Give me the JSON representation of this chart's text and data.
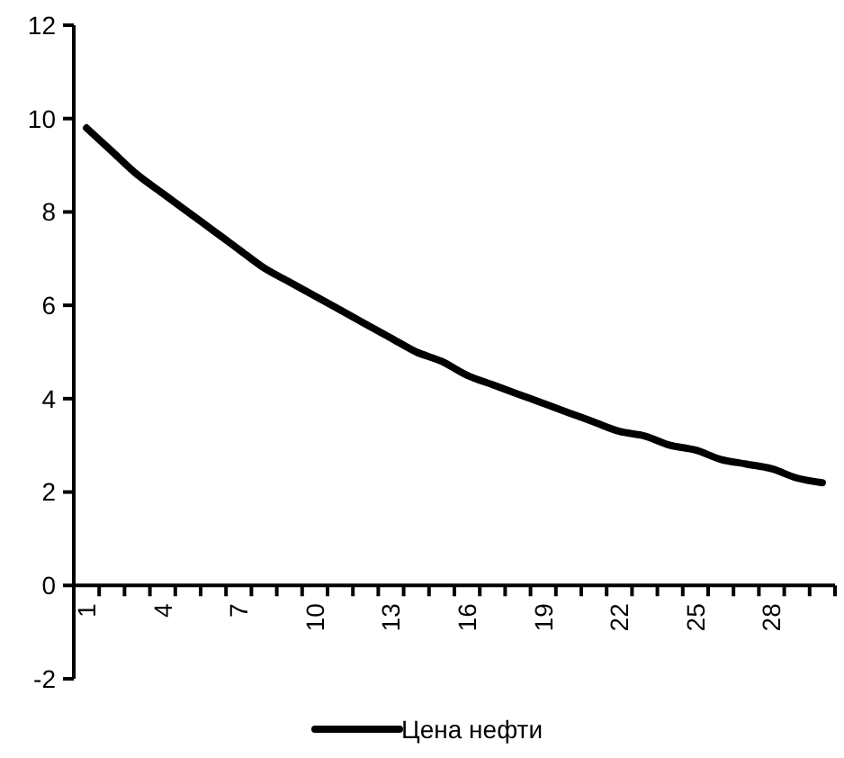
{
  "chart_data": {
    "type": "line",
    "categories": [
      "1",
      null,
      null,
      "4",
      null,
      null,
      "7",
      null,
      null,
      "10",
      null,
      null,
      "13",
      null,
      null,
      "16",
      null,
      null,
      "19",
      null,
      null,
      "22",
      null,
      null,
      "25",
      null,
      null,
      "28",
      null,
      null
    ],
    "series": [
      {
        "name": "Цена нефти",
        "color": "#000000",
        "values": [
          9.8,
          9.3,
          8.8,
          8.4,
          8.0,
          7.6,
          7.2,
          6.8,
          6.5,
          6.2,
          5.9,
          5.6,
          5.3,
          5.0,
          4.8,
          4.5,
          4.3,
          4.1,
          3.9,
          3.7,
          3.5,
          3.3,
          3.2,
          3.0,
          2.9,
          2.7,
          2.6,
          2.5,
          2.3,
          2.2
        ]
      }
    ],
    "ylim": [
      -2,
      12
    ],
    "yticks": [
      -2,
      0,
      2,
      4,
      6,
      8,
      10,
      12
    ],
    "grid": false,
    "legend": "bottom",
    "marker": "none",
    "line_style": "solid"
  }
}
